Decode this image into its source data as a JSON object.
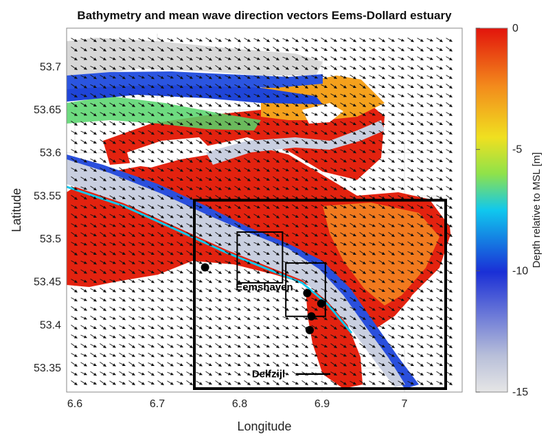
{
  "chart_data": {
    "type": "heatmap",
    "title": "Bathymetry and mean wave direction vectors Eems-Dollard estuary",
    "xlabel": "Longitude",
    "ylabel": "Latitude",
    "xlim": [
      6.59,
      7.07
    ],
    "ylim": [
      53.322,
      53.745
    ],
    "xticks": [
      "6.6",
      "6.7",
      "6.8",
      "6.9",
      "7"
    ],
    "yticks": [
      "53.35",
      "53.4",
      "53.45",
      "53.5",
      "53.55",
      "53.6",
      "53.65",
      "53.7"
    ],
    "grid": true,
    "colorbar": {
      "label": "Depth relative to MSL [m]",
      "range": [
        -15,
        0
      ],
      "ticks": [
        "0",
        "-5",
        "-10",
        "-15"
      ],
      "colormap": "jet (reversed), light grey at -15",
      "stops": [
        "#e6e6e6",
        "#1a2fd6",
        "#10c8ee",
        "#8fe24a",
        "#f0e020",
        "#f38b1c",
        "#e2140c"
      ]
    },
    "vectors": "mean wave direction arrows, predominantly pointing south-east",
    "boxes": [
      {
        "name": "large study area",
        "lon": [
          6.745,
          7.05
        ],
        "lat": [
          53.326,
          53.545
        ]
      },
      {
        "name": "Eemshaven box",
        "lon": [
          6.797,
          6.852
        ],
        "lat": [
          53.449,
          53.508
        ]
      },
      {
        "name": "harbour box",
        "lon": [
          6.856,
          6.904
        ],
        "lat": [
          53.41,
          53.472
        ]
      }
    ],
    "points": [
      {
        "lon": 6.758,
        "lat": 53.467
      },
      {
        "lon": 6.882,
        "lat": 53.437
      },
      {
        "lon": 6.899,
        "lat": 53.425
      },
      {
        "lon": 6.887,
        "lat": 53.41
      },
      {
        "lon": 6.885,
        "lat": 53.394
      }
    ],
    "annotations": [
      {
        "text": "Eemshaven",
        "lon": 6.83,
        "lat": 53.44
      },
      {
        "text": "Delfzijl",
        "lon": 6.835,
        "lat": 53.339
      }
    ]
  }
}
